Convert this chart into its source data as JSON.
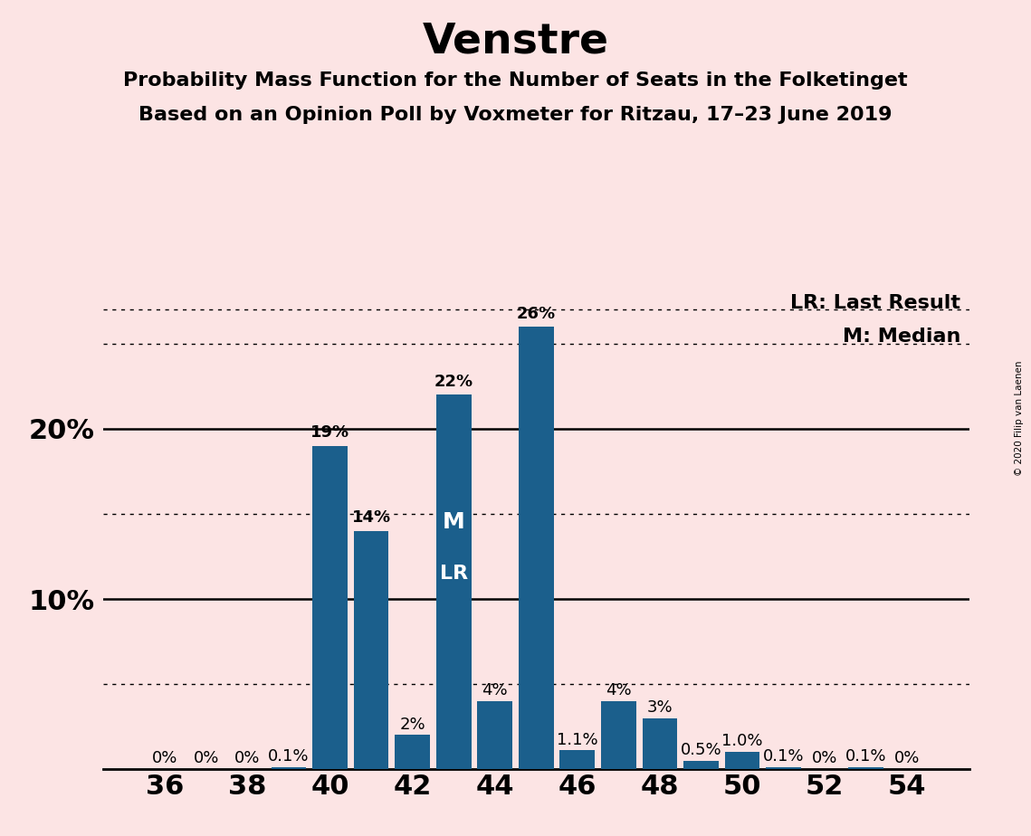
{
  "title": "Venstre",
  "subtitle1": "Probability Mass Function for the Number of Seats in the Folketinget",
  "subtitle2": "Based on an Opinion Poll by Voxmeter for Ritzau, 17–23 June 2019",
  "copyright": "© 2020 Filip van Laenen",
  "seats": [
    36,
    37,
    38,
    39,
    40,
    41,
    42,
    43,
    44,
    45,
    46,
    47,
    48,
    49,
    50,
    51,
    52,
    53,
    54
  ],
  "probabilities": [
    0.0,
    0.0,
    0.0,
    0.1,
    19.0,
    14.0,
    2.0,
    22.0,
    4.0,
    26.0,
    1.1,
    4.0,
    3.0,
    0.5,
    1.0,
    0.1,
    0.0,
    0.1,
    0.0
  ],
  "bar_color": "#1b5f8c",
  "background_color": "#fce4e4",
  "median_seat": 43,
  "last_result_seat": 43,
  "legend_lr": "LR: Last Result",
  "legend_m": "M: Median",
  "solid_lines": [
    10,
    20
  ],
  "dotted_lines": [
    5,
    15,
    25,
    27
  ],
  "title_fontsize": 34,
  "subtitle_fontsize": 16,
  "bar_label_fontsize": 13,
  "axis_tick_fontsize": 22,
  "ytick_fontsize": 22,
  "legend_fontsize": 16,
  "label_map": {
    "36": "0%",
    "37": "0%",
    "38": "0%",
    "39": "0.1%",
    "40": "19%",
    "41": "14%",
    "42": "2%",
    "43": "22%",
    "44": "4%",
    "45": "26%",
    "46": "1.1%",
    "47": "4%",
    "48": "3%",
    "49": "0.5%",
    "50": "1.0%",
    "51": "0.1%",
    "52": "0%",
    "53": "0.1%",
    "54": "0%"
  },
  "xlim": [
    34.5,
    55.5
  ],
  "ylim": [
    0,
    28.5
  ],
  "xticks": [
    36,
    38,
    40,
    42,
    44,
    46,
    48,
    50,
    52,
    54
  ],
  "yticks": [
    0,
    5,
    10,
    15,
    20,
    25
  ],
  "ytick_labels": [
    "",
    "",
    "10%",
    "",
    "20%",
    ""
  ],
  "bar_width": 0.85
}
